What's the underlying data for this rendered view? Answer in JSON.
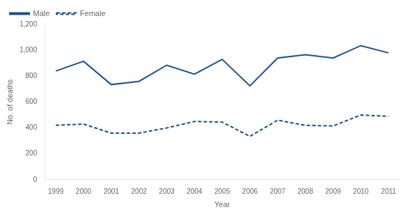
{
  "chart_data": {
    "type": "line",
    "x": [
      1999,
      2000,
      2001,
      2002,
      2003,
      2004,
      2005,
      2006,
      2007,
      2008,
      2009,
      2010,
      2011
    ],
    "series": [
      {
        "name": "Male",
        "color": "#1B4F8A",
        "line_style": "solid",
        "values": [
          840,
          915,
          735,
          760,
          885,
          815,
          930,
          725,
          940,
          965,
          940,
          1036,
          980
        ]
      },
      {
        "name": "Female",
        "color": "#1B4F8A",
        "line_style": "dashed",
        "values": [
          420,
          430,
          360,
          360,
          400,
          450,
          445,
          335,
          460,
          420,
          415,
          500,
          490
        ]
      }
    ],
    "xlabel": "Year",
    "ylabel": "No. of deaths",
    "xlim": [
      1998.6,
      2011.4
    ],
    "xticks": [
      1999,
      2000,
      2001,
      2002,
      2003,
      2004,
      2005,
      2006,
      2007,
      2008,
      2009,
      2010,
      2011
    ],
    "ylim": [
      0,
      1200
    ],
    "yticks": [
      0,
      200,
      400,
      600,
      800,
      {
        "value": 1000,
        "label": "1,000"
      },
      {
        "value": 1200,
        "label": "1,200"
      }
    ],
    "grid": false,
    "legend": "upper left"
  }
}
